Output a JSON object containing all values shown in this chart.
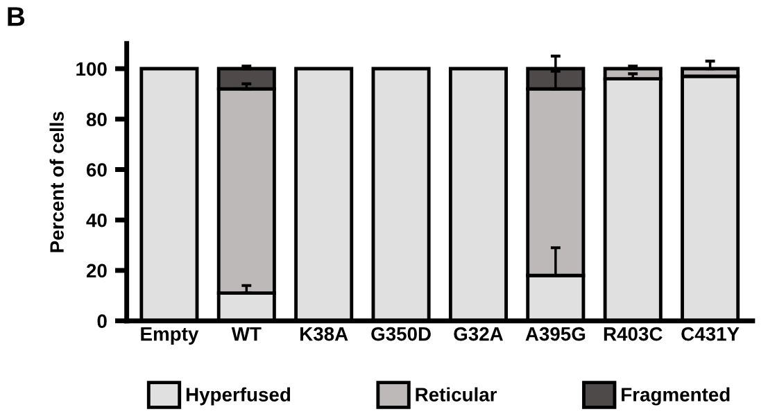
{
  "chart_data": {
    "type": "bar",
    "stacked": true,
    "ylabel": "Percent of cells",
    "annotations": [
      "B"
    ],
    "categories": [
      "Empty",
      "WT",
      "K38A",
      "G350D",
      "G32A",
      "A395G",
      "R403C",
      "C431Y"
    ],
    "series": [
      {
        "name": "Hyperfused",
        "color": "#e0e0e0",
        "values": [
          100,
          11,
          100,
          100,
          100,
          18,
          96,
          97
        ],
        "errors": [
          null,
          [
            11,
            14
          ],
          null,
          null,
          null,
          [
            18,
            29
          ],
          [
            96,
            98
          ],
          null
        ]
      },
      {
        "name": "Reticular",
        "color": "#bdb9b8",
        "values": [
          0,
          81,
          0,
          0,
          0,
          74,
          4,
          3
        ],
        "errors": [
          null,
          [
            92,
            94
          ],
          null,
          null,
          null,
          [
            92,
            99
          ],
          [
            100,
            101
          ],
          [
            100,
            103
          ]
        ]
      },
      {
        "name": "Fragmented",
        "color": "#4e4a4a",
        "values": [
          0,
          8,
          0,
          0,
          0,
          8,
          0,
          0
        ],
        "errors": [
          null,
          [
            100,
            101
          ],
          null,
          null,
          null,
          [
            100,
            105
          ],
          null,
          null
        ]
      }
    ],
    "ylim": [
      0,
      110
    ],
    "yticks": [
      0,
      20,
      40,
      60,
      80,
      100
    ],
    "grid": false,
    "legend": "bottom"
  }
}
